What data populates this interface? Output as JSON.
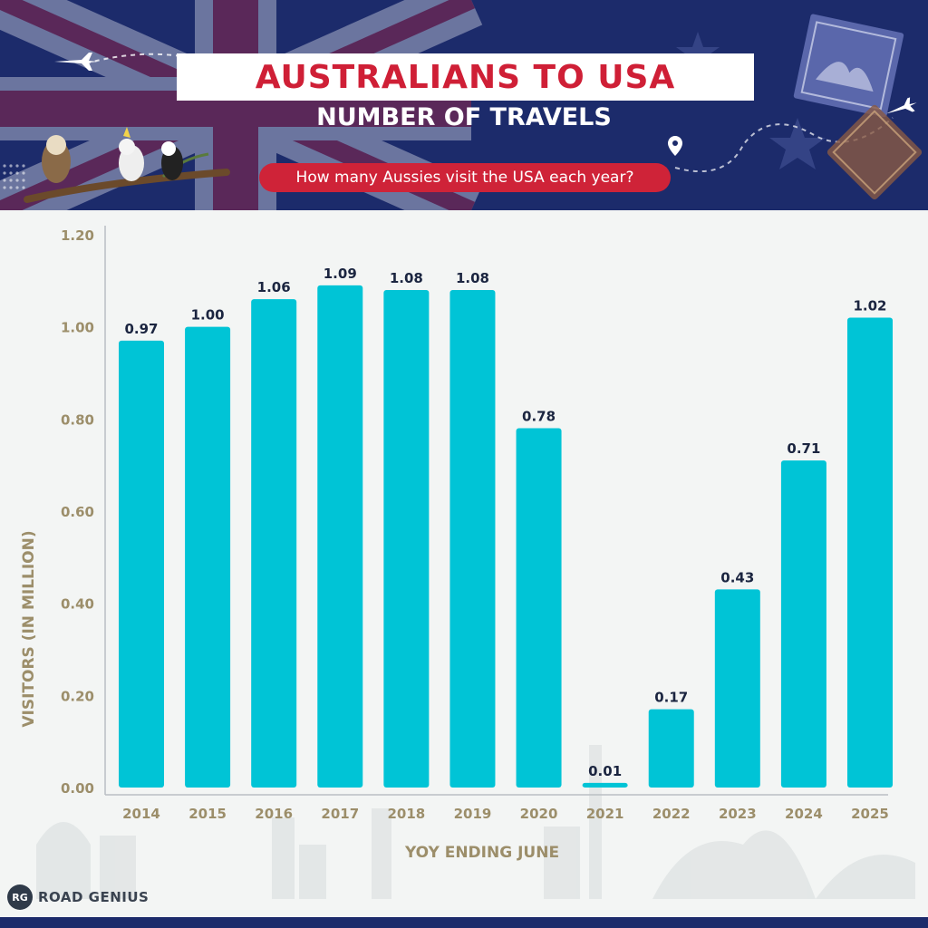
{
  "header": {
    "title": "AUSTRALIANS TO USA",
    "subtitle": "NUMBER OF TRAVELS",
    "question": "How many Aussies visit the USA each year?"
  },
  "brand": {
    "badge": "RG",
    "name": "ROAD GENIUS"
  },
  "colors": {
    "navy": "#1c2b6b",
    "red": "#cf2338",
    "bar": "#00c4d6",
    "axis_text": "#9c8e6a",
    "value_text": "#1b2540"
  },
  "chart_data": {
    "type": "bar",
    "categories": [
      "2014",
      "2015",
      "2016",
      "2017",
      "2018",
      "2019",
      "2020",
      "2021",
      "2022",
      "2023",
      "2024",
      "2025"
    ],
    "values": [
      0.97,
      1.0,
      1.06,
      1.09,
      1.08,
      1.08,
      0.78,
      0.01,
      0.17,
      0.43,
      0.71,
      1.02
    ],
    "value_labels": [
      "0.97",
      "1.00",
      "1.06",
      "1.09",
      "1.08",
      "1.08",
      "0.78",
      "0.01",
      "0.17",
      "0.43",
      "0.71",
      "1.02"
    ],
    "title": "AUSTRALIANS TO USA",
    "subtitle": "NUMBER OF TRAVELS",
    "xlabel": "YOY ENDING JUNE",
    "ylabel": "VISITORS (IN MILLION)",
    "ylim": [
      0,
      1.2
    ],
    "yticks": [
      0,
      0.2,
      0.4,
      0.6,
      0.8,
      1.0,
      1.2
    ],
    "ytick_labels": [
      "0.00",
      "0.20",
      "0.40",
      "0.60",
      "0.80",
      "1.00",
      "1.20"
    ],
    "grid": false,
    "legend": "none"
  }
}
